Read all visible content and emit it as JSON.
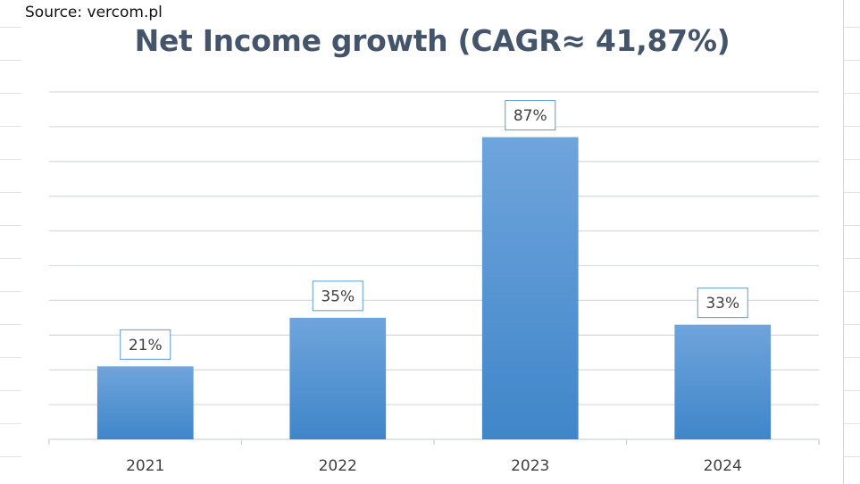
{
  "source_note": "Source: vercom.pl",
  "colors": {
    "bar_top": "#6fa4dc",
    "bar_bottom": "#3f86c9",
    "title": "#44546a",
    "label_border": "#5b9bd5"
  },
  "chart_data": {
    "type": "bar",
    "title": "Net Income growth (CAGR≈ 41,87%)",
    "categories": [
      "2021",
      "2022",
      "2023",
      "2024"
    ],
    "values": [
      21,
      35,
      87,
      33
    ],
    "data_labels": [
      "21%",
      "35%",
      "87%",
      "33%"
    ],
    "xlabel": "",
    "ylabel": "",
    "ylim": [
      0,
      100
    ],
    "y_gridlines": 10,
    "grid": true,
    "legend": "none"
  }
}
